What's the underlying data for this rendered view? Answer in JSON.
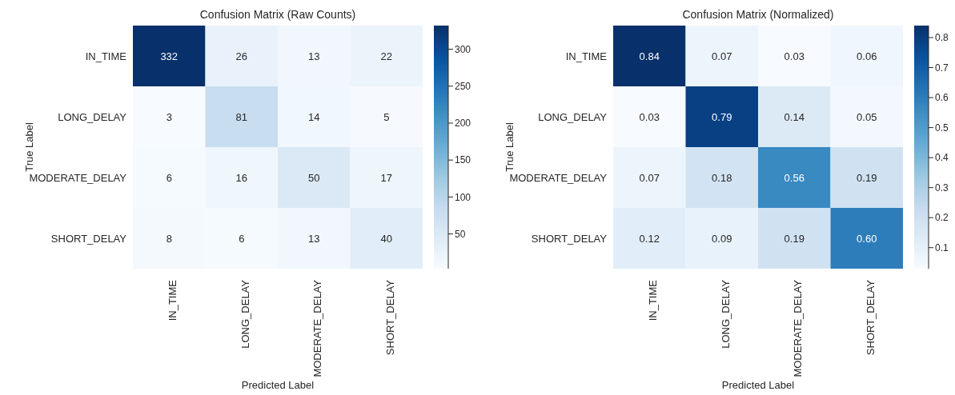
{
  "chart_data": [
    {
      "type": "heatmap",
      "title": "Confusion Matrix (Raw Counts)",
      "xlabel": "Predicted Label",
      "ylabel": "True Label",
      "categories": [
        "IN_TIME",
        "LONG_DELAY",
        "MODERATE_DELAY",
        "SHORT_DELAY"
      ],
      "y_categories": [
        "IN_TIME",
        "LONG_DELAY",
        "MODERATE_DELAY",
        "SHORT_DELAY"
      ],
      "cells": [
        [
          332,
          26,
          13,
          22
        ],
        [
          3,
          81,
          14,
          5
        ],
        [
          6,
          16,
          50,
          17
        ],
        [
          8,
          6,
          13,
          40
        ]
      ],
      "data_labels": true,
      "clim": [
        3,
        332
      ],
      "cticks": [
        50,
        100,
        150,
        200,
        250,
        300
      ]
    },
    {
      "type": "heatmap",
      "title": "Confusion Matrix (Normalized)",
      "xlabel": "Predicted Label",
      "ylabel": "True Label",
      "categories": [
        "IN_TIME",
        "LONG_DELAY",
        "MODERATE_DELAY",
        "SHORT_DELAY"
      ],
      "y_categories": [
        "IN_TIME",
        "LONG_DELAY",
        "MODERATE_DELAY",
        "SHORT_DELAY"
      ],
      "cells": [
        [
          0.84,
          0.07,
          0.03,
          0.06
        ],
        [
          0.03,
          0.79,
          0.14,
          0.05
        ],
        [
          0.07,
          0.18,
          0.56,
          0.19
        ],
        [
          0.12,
          0.09,
          0.19,
          0.6
        ]
      ],
      "cell_labels": [
        [
          "0.84",
          "0.07",
          "0.03",
          "0.06"
        ],
        [
          "0.03",
          "0.79",
          "0.14",
          "0.05"
        ],
        [
          "0.07",
          "0.18",
          "0.56",
          "0.19"
        ],
        [
          "0.12",
          "0.09",
          "0.19",
          "0.60"
        ]
      ],
      "clim": [
        0.03,
        0.84
      ],
      "cticks": [
        0.1,
        0.2,
        0.3,
        0.4,
        0.5,
        0.6,
        0.7,
        0.8
      ]
    }
  ]
}
